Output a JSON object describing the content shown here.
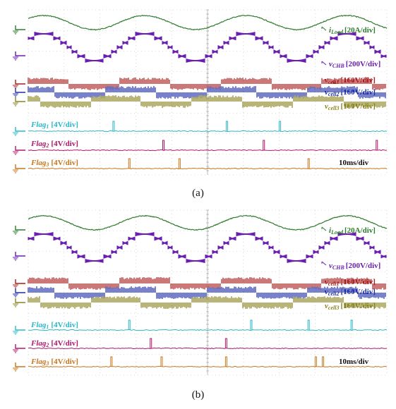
{
  "figure": {
    "panels": [
      {
        "caption": "(a)",
        "timebase": "10ms/div",
        "iload": {
          "sym": "i",
          "sub": "Load",
          "scale": "[20A/div]"
        },
        "vchb": {
          "sym": "v",
          "sub": "CHB",
          "scale": "[200V/div]"
        },
        "vcell1": {
          "sym": "v",
          "sub": "cell1",
          "scale": "[160V/div]"
        },
        "vcell2": {
          "sym": "v",
          "sub": "cell2",
          "scale": "[160V/div]"
        },
        "vcell3": {
          "sym": "v",
          "sub": "cell3",
          "scale": "[160V/div]"
        },
        "flag1": {
          "sym": "Flag",
          "sub": "1",
          "scale": "[4V/div]"
        },
        "flag2": {
          "sym": "Flag",
          "sub": "2",
          "scale": "[4V/div]"
        },
        "flag3": {
          "sym": "Flag",
          "sub": "3",
          "scale": "[4V/div]"
        }
      },
      {
        "caption": "(b)",
        "timebase": "10ms/div",
        "iload": {
          "sym": "i",
          "sub": "Load",
          "scale": "[20A/div]"
        },
        "vchb": {
          "sym": "v",
          "sub": "CHB",
          "scale": "[200V/div]"
        },
        "vcell1": {
          "sym": "v",
          "sub": "cell1",
          "scale": "[160V/div]"
        },
        "vcell2": {
          "sym": "v",
          "sub": "cell2",
          "scale": "[160V/div]"
        },
        "vcell3": {
          "sym": "v",
          "sub": "cell3",
          "scale": "[160V/div]"
        },
        "flag1": {
          "sym": "Flag",
          "sub": "1",
          "scale": "[4V/div]"
        },
        "flag2": {
          "sym": "Flag",
          "sub": "2",
          "scale": "[4V/div]"
        },
        "flag3": {
          "sym": "Flag",
          "sub": "3",
          "scale": "[4V/div]"
        }
      }
    ],
    "colors": {
      "iload": "#2e7d2e",
      "vchb": "#6a1fb0",
      "vcell1": "#a81e1e",
      "vcell2": "#1e2ea8",
      "vcell3": "#8a8420",
      "flag1": "#2ab8c8",
      "flag2": "#b0186c",
      "flag3": "#c8761e",
      "grid": "#bdbdbd"
    }
  }
}
